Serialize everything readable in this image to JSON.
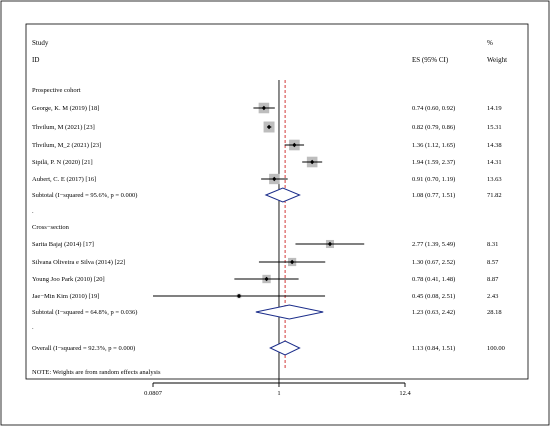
{
  "header": {
    "study_line1": "Study",
    "study_line2": "ID",
    "es_label": "ES (95% CI)",
    "pct_line1": "%",
    "pct_line2": "Weight"
  },
  "note": "NOTE: Weights are from random effects analysis",
  "chart_data": {
    "type": "forest",
    "axis": {
      "scale": "log",
      "ticks": [
        0.0807,
        1,
        12.4
      ],
      "tick_labels": [
        "0.0807",
        "1",
        "12.4"
      ],
      "xlim": [
        0.0807,
        12.4
      ],
      "null_line": 1
    },
    "overall_line_value": 1.13,
    "groups": [
      {
        "name": "Prospective cohort",
        "studies": [
          {
            "label": "George, K. M (2019) [18]",
            "es": 0.74,
            "lo": 0.6,
            "hi": 0.92,
            "ci_text": "0.74 (0.60, 0.92)",
            "weight": "14.19"
          },
          {
            "label": "Thvilum, M (2021) [23]",
            "es": 0.82,
            "lo": 0.79,
            "hi": 0.86,
            "ci_text": "0.82 (0.79, 0.86)",
            "weight": "15.31"
          },
          {
            "label": "Thvilum, M_2 (2021) [23]",
            "es": 1.36,
            "lo": 1.12,
            "hi": 1.65,
            "ci_text": "1.36 (1.12, 1.65)",
            "weight": "14.38"
          },
          {
            "label": "Sipilä, P. N (2020) [21]",
            "es": 1.94,
            "lo": 1.59,
            "hi": 2.37,
            "ci_text": "1.94 (1.59, 2.37)",
            "weight": "14.31"
          },
          {
            "label": "Aubert, C. E (2017) [16]",
            "es": 0.91,
            "lo": 0.7,
            "hi": 1.19,
            "ci_text": "0.91 (0.70, 1.19)",
            "weight": "13.63"
          }
        ],
        "subtotal": {
          "label": "Subtotal  (I−squared = 95.6%, p = 0.000)",
          "es": 1.08,
          "lo": 0.77,
          "hi": 1.51,
          "ci_text": "1.08 (0.77, 1.51)",
          "weight": "71.82"
        }
      },
      {
        "name": "Cross−section",
        "studies": [
          {
            "label": "Sarita Bajaj (2014) [17]",
            "es": 2.77,
            "lo": 1.39,
            "hi": 5.49,
            "ci_text": "2.77 (1.39, 5.49)",
            "weight": "8.31"
          },
          {
            "label": "Silvana Oliveira e Silva (2014) [22]",
            "es": 1.3,
            "lo": 0.67,
            "hi": 2.52,
            "ci_text": "1.30 (0.67, 2.52)",
            "weight": "8.57"
          },
          {
            "label": "Young Joo Park (2010) [20]",
            "es": 0.78,
            "lo": 0.41,
            "hi": 1.48,
            "ci_text": "0.78 (0.41, 1.48)",
            "weight": "8.87"
          },
          {
            "label": "Jae−Min Kim (2010) [19]",
            "es": 0.45,
            "lo": 0.08,
            "hi": 2.51,
            "ci_text": "0.45 (0.08, 2.51)",
            "weight": "2.43"
          }
        ],
        "subtotal": {
          "label": "Subtotal  (I−squared = 64.8%, p = 0.036)",
          "es": 1.23,
          "lo": 0.63,
          "hi": 2.42,
          "ci_text": "1.23 (0.63, 2.42)",
          "weight": "28.18"
        }
      }
    ],
    "overall": {
      "label": "Overall  (I−squared = 92.3%, p = 0.000)",
      "es": 1.13,
      "lo": 0.84,
      "hi": 1.51,
      "ci_text": "1.13 (0.84, 1.51)",
      "weight": "100.00"
    }
  }
}
